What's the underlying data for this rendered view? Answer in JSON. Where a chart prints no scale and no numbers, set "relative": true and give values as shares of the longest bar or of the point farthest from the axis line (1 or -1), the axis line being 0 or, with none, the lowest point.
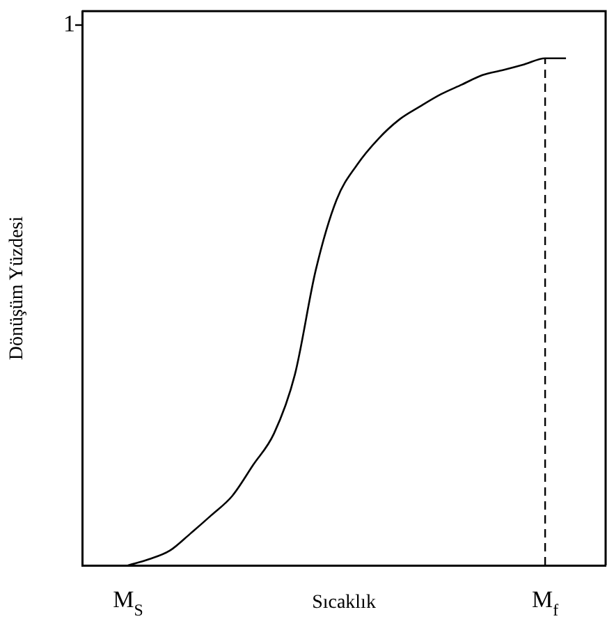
{
  "chart_data": {
    "type": "line",
    "xlabel": "Sıcaklık",
    "ylabel": "Dönüşüm Yüzdesi",
    "relative": true,
    "categories": [
      "M$_{S}$",
      null,
      null,
      null,
      null,
      null,
      null,
      null,
      null,
      null,
      null,
      null,
      null,
      null,
      null,
      null,
      null,
      null,
      null,
      null,
      "M$_{f}$",
      null
    ],
    "series": [
      {
        "color": "#000000",
        "values": [
          0,
          0.012,
          0.029,
          0.063,
          0.099,
          0.137,
          0.198,
          0.26,
          0.376,
          0.582,
          0.721,
          0.791,
          0.841,
          0.879,
          0.905,
          0.929,
          0.948,
          0.967,
          0.977,
          0.988,
          1,
          1
        ]
      }
    ],
    "annotations": [
      "1"
    ],
    "ref_lines": [
      {
        "axis": "x",
        "value": "M$_{f}$",
        "line_style": "dashed",
        "color": "#000000"
      }
    ],
    "legend": false,
    "marker": "none",
    "line_style": "solid"
  }
}
